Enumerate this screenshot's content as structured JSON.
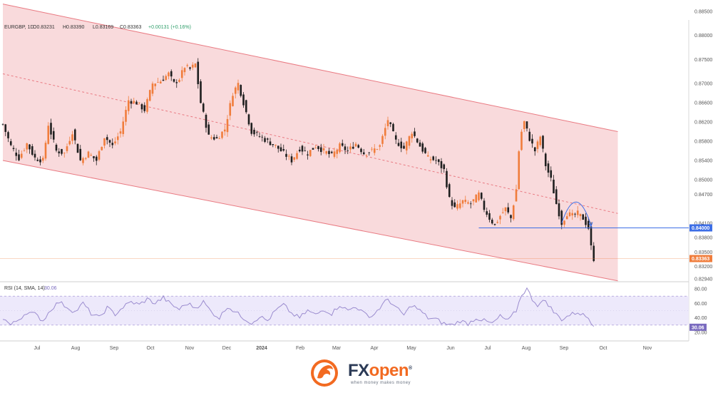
{
  "chart_data": {
    "type": "candlestick",
    "symbol": "EURGBP",
    "timeframe": "1D",
    "ohlc_header": {
      "open": "O0.83231",
      "high": "H0.83390",
      "low": "L0.83169",
      "close": "C0.83363",
      "change": "+0.00131 (+0.16%)"
    },
    "price_axis": {
      "ticks": [
        "0.88500",
        "0.88000",
        "0.87500",
        "0.87000",
        "0.86600",
        "0.86200",
        "0.85800",
        "0.85400",
        "0.85000",
        "0.84700",
        "0.84100",
        "0.83800",
        "0.83500",
        "0.83200",
        "0.82940"
      ],
      "labels_extra": {
        "level": "0.84000",
        "last": "0.83363"
      }
    },
    "x_axis": {
      "months": [
        "Jul",
        "Aug",
        "Sep",
        "Oct",
        "Nov",
        "Dec",
        "2024",
        "Feb",
        "Mar",
        "Apr",
        "May",
        "Jun",
        "Jul",
        "Aug",
        "Sep",
        "Oct",
        "Nov"
      ]
    },
    "price_series": [
      {
        "d": 0,
        "c": 0.8615
      },
      {
        "d": 6,
        "c": 0.857
      },
      {
        "d": 12,
        "c": 0.8545
      },
      {
        "d": 18,
        "c": 0.8575
      },
      {
        "d": 24,
        "c": 0.8545
      },
      {
        "d": 30,
        "c": 0.854
      },
      {
        "d": 34,
        "c": 0.8615
      },
      {
        "d": 40,
        "c": 0.856
      },
      {
        "d": 46,
        "c": 0.8555
      },
      {
        "d": 52,
        "c": 0.86
      },
      {
        "d": 58,
        "c": 0.854
      },
      {
        "d": 64,
        "c": 0.8555
      },
      {
        "d": 70,
        "c": 0.854
      },
      {
        "d": 76,
        "c": 0.859
      },
      {
        "d": 82,
        "c": 0.857
      },
      {
        "d": 88,
        "c": 0.86
      },
      {
        "d": 94,
        "c": 0.8665
      },
      {
        "d": 100,
        "c": 0.866
      },
      {
        "d": 106,
        "c": 0.8645
      },
      {
        "d": 112,
        "c": 0.87
      },
      {
        "d": 118,
        "c": 0.8705
      },
      {
        "d": 124,
        "c": 0.872
      },
      {
        "d": 128,
        "c": 0.87
      },
      {
        "d": 132,
        "c": 0.871
      },
      {
        "d": 136,
        "c": 0.8735
      },
      {
        "d": 140,
        "c": 0.873
      },
      {
        "d": 144,
        "c": 0.874
      },
      {
        "d": 148,
        "c": 0.866
      },
      {
        "d": 154,
        "c": 0.859
      },
      {
        "d": 160,
        "c": 0.8585
      },
      {
        "d": 166,
        "c": 0.8605
      },
      {
        "d": 172,
        "c": 0.868
      },
      {
        "d": 176,
        "c": 0.87
      },
      {
        "d": 180,
        "c": 0.866
      },
      {
        "d": 186,
        "c": 0.86
      },
      {
        "d": 192,
        "c": 0.859
      },
      {
        "d": 198,
        "c": 0.858
      },
      {
        "d": 204,
        "c": 0.857
      },
      {
        "d": 210,
        "c": 0.8555
      },
      {
        "d": 216,
        "c": 0.854
      },
      {
        "d": 222,
        "c": 0.8565
      },
      {
        "d": 228,
        "c": 0.8555
      },
      {
        "d": 234,
        "c": 0.857
      },
      {
        "d": 240,
        "c": 0.856
      },
      {
        "d": 246,
        "c": 0.855
      },
      {
        "d": 252,
        "c": 0.857
      },
      {
        "d": 258,
        "c": 0.856
      },
      {
        "d": 264,
        "c": 0.8575
      },
      {
        "d": 270,
        "c": 0.8555
      },
      {
        "d": 276,
        "c": 0.856
      },
      {
        "d": 282,
        "c": 0.857
      },
      {
        "d": 288,
        "c": 0.8625
      },
      {
        "d": 294,
        "c": 0.858
      },
      {
        "d": 300,
        "c": 0.8565
      },
      {
        "d": 306,
        "c": 0.86
      },
      {
        "d": 312,
        "c": 0.857
      },
      {
        "d": 318,
        "c": 0.8545
      },
      {
        "d": 324,
        "c": 0.854
      },
      {
        "d": 330,
        "c": 0.852
      },
      {
        "d": 334,
        "c": 0.846
      },
      {
        "d": 338,
        "c": 0.844
      },
      {
        "d": 344,
        "c": 0.8455
      },
      {
        "d": 350,
        "c": 0.845
      },
      {
        "d": 356,
        "c": 0.847
      },
      {
        "d": 360,
        "c": 0.844
      },
      {
        "d": 364,
        "c": 0.842
      },
      {
        "d": 368,
        "c": 0.8405
      },
      {
        "d": 372,
        "c": 0.8425
      },
      {
        "d": 376,
        "c": 0.844
      },
      {
        "d": 380,
        "c": 0.842
      },
      {
        "d": 384,
        "c": 0.848
      },
      {
        "d": 386,
        "c": 0.856
      },
      {
        "d": 388,
        "c": 0.86
      },
      {
        "d": 390,
        "c": 0.862
      },
      {
        "d": 394,
        "c": 0.8585
      },
      {
        "d": 398,
        "c": 0.856
      },
      {
        "d": 402,
        "c": 0.859
      },
      {
        "d": 406,
        "c": 0.853
      },
      {
        "d": 410,
        "c": 0.85
      },
      {
        "d": 414,
        "c": 0.845
      },
      {
        "d": 418,
        "c": 0.841
      },
      {
        "d": 422,
        "c": 0.843
      },
      {
        "d": 426,
        "c": 0.8425
      },
      {
        "d": 430,
        "c": 0.843
      },
      {
        "d": 434,
        "c": 0.842
      },
      {
        "d": 438,
        "c": 0.84
      },
      {
        "d": 440,
        "c": 0.836
      },
      {
        "d": 442,
        "c": 0.8336
      }
    ],
    "channel": {
      "upper": [
        {
          "d": 0,
          "p": 0.8865
        },
        {
          "d": 460,
          "p": 0.86
        }
      ],
      "mid": [
        {
          "d": 0,
          "p": 0.872
        },
        {
          "d": 460,
          "p": 0.843
        }
      ],
      "lower": [
        {
          "d": 0,
          "p": 0.854
        },
        {
          "d": 460,
          "p": 0.829
        }
      ]
    },
    "horizontal_level": {
      "p": 0.84,
      "from_d": 356
    },
    "last_price_line": {
      "p": 0.83363
    },
    "rsi": {
      "label": "RSI (14, SMA, 14)",
      "value": "30.06",
      "ticks": [
        "80.00",
        "60.00",
        "40.00",
        "20.00"
      ],
      "band_upper": 70,
      "band_lower": 30,
      "series": [
        {
          "d": 0,
          "v": 40
        },
        {
          "d": 6,
          "v": 30
        },
        {
          "d": 12,
          "v": 38
        },
        {
          "d": 18,
          "v": 48
        },
        {
          "d": 24,
          "v": 45
        },
        {
          "d": 30,
          "v": 36
        },
        {
          "d": 36,
          "v": 52
        },
        {
          "d": 42,
          "v": 62
        },
        {
          "d": 48,
          "v": 55
        },
        {
          "d": 54,
          "v": 48
        },
        {
          "d": 60,
          "v": 60
        },
        {
          "d": 66,
          "v": 46
        },
        {
          "d": 72,
          "v": 40
        },
        {
          "d": 78,
          "v": 54
        },
        {
          "d": 84,
          "v": 45
        },
        {
          "d": 90,
          "v": 55
        },
        {
          "d": 96,
          "v": 62
        },
        {
          "d": 102,
          "v": 58
        },
        {
          "d": 108,
          "v": 66
        },
        {
          "d": 114,
          "v": 60
        },
        {
          "d": 120,
          "v": 68
        },
        {
          "d": 126,
          "v": 58
        },
        {
          "d": 132,
          "v": 52
        },
        {
          "d": 138,
          "v": 60
        },
        {
          "d": 144,
          "v": 54
        },
        {
          "d": 150,
          "v": 62
        },
        {
          "d": 156,
          "v": 48
        },
        {
          "d": 162,
          "v": 40
        },
        {
          "d": 168,
          "v": 56
        },
        {
          "d": 174,
          "v": 48
        },
        {
          "d": 180,
          "v": 40
        },
        {
          "d": 186,
          "v": 33
        },
        {
          "d": 192,
          "v": 42
        },
        {
          "d": 198,
          "v": 36
        },
        {
          "d": 204,
          "v": 50
        },
        {
          "d": 210,
          "v": 58
        },
        {
          "d": 216,
          "v": 46
        },
        {
          "d": 222,
          "v": 40
        },
        {
          "d": 228,
          "v": 50
        },
        {
          "d": 234,
          "v": 44
        },
        {
          "d": 240,
          "v": 52
        },
        {
          "d": 246,
          "v": 46
        },
        {
          "d": 252,
          "v": 58
        },
        {
          "d": 258,
          "v": 50
        },
        {
          "d": 264,
          "v": 56
        },
        {
          "d": 270,
          "v": 46
        },
        {
          "d": 276,
          "v": 42
        },
        {
          "d": 282,
          "v": 54
        },
        {
          "d": 288,
          "v": 66
        },
        {
          "d": 294,
          "v": 54
        },
        {
          "d": 300,
          "v": 44
        },
        {
          "d": 306,
          "v": 58
        },
        {
          "d": 312,
          "v": 50
        },
        {
          "d": 318,
          "v": 40
        },
        {
          "d": 324,
          "v": 38
        },
        {
          "d": 330,
          "v": 32
        },
        {
          "d": 336,
          "v": 30
        },
        {
          "d": 342,
          "v": 36
        },
        {
          "d": 348,
          "v": 32
        },
        {
          "d": 354,
          "v": 40
        },
        {
          "d": 360,
          "v": 36
        },
        {
          "d": 366,
          "v": 32
        },
        {
          "d": 372,
          "v": 42
        },
        {
          "d": 378,
          "v": 36
        },
        {
          "d": 384,
          "v": 50
        },
        {
          "d": 388,
          "v": 72
        },
        {
          "d": 392,
          "v": 80
        },
        {
          "d": 396,
          "v": 66
        },
        {
          "d": 400,
          "v": 58
        },
        {
          "d": 406,
          "v": 64
        },
        {
          "d": 412,
          "v": 48
        },
        {
          "d": 418,
          "v": 38
        },
        {
          "d": 424,
          "v": 44
        },
        {
          "d": 430,
          "v": 48
        },
        {
          "d": 434,
          "v": 44
        },
        {
          "d": 438,
          "v": 40
        },
        {
          "d": 442,
          "v": 30
        }
      ]
    },
    "colors": {
      "bull": "#f07d3c",
      "bear": "#1f1f1f",
      "channel_fill": "#f8d3d6",
      "channel_line": "#e97a82",
      "level_line": "#3d6ee6",
      "rsi_line": "#9b8ccf",
      "rsi_band": "#ede9fb",
      "level_label_bg": "#3d6ee6",
      "last_label_bg": "#f07d3c"
    }
  },
  "brand": {
    "name_part1": "FX",
    "name_part2": "open",
    "registered": "®",
    "tagline": "when money makes money"
  }
}
